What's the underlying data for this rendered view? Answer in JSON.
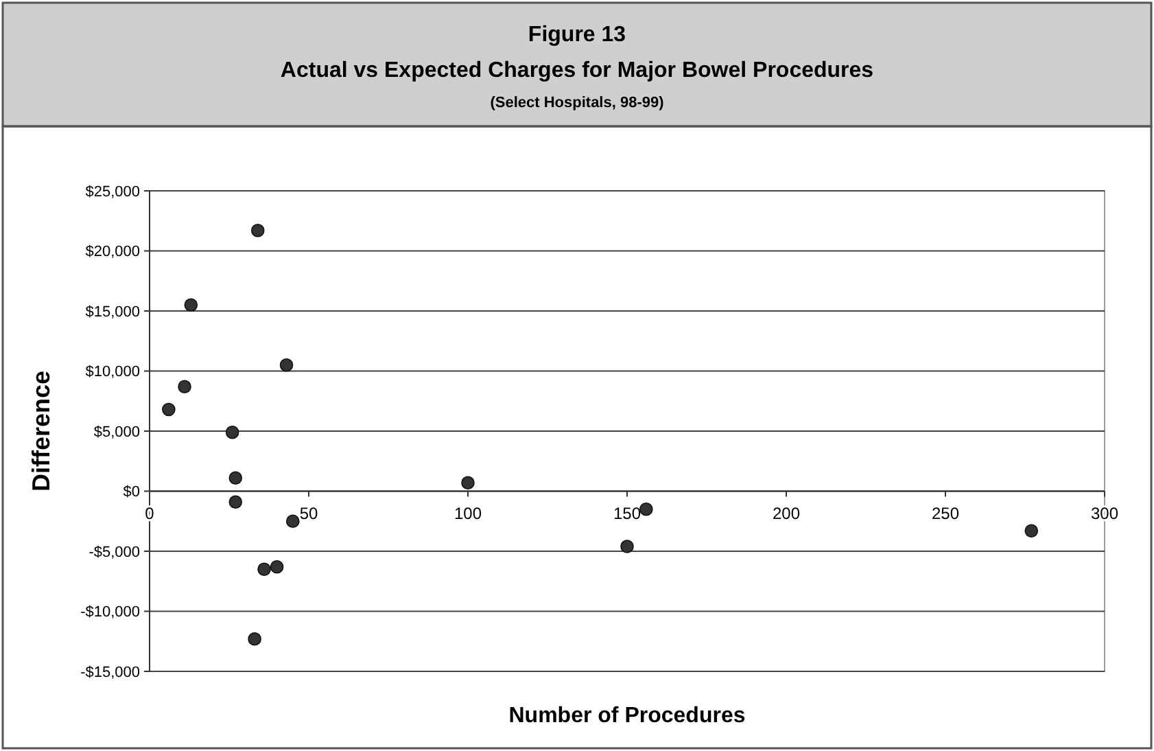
{
  "chart_data": {
    "type": "scatter",
    "title": "Figure 13",
    "subtitle": "Actual vs Expected Charges for Major Bowel Procedures",
    "annotations": [
      "(Select Hospitals, 98-99)"
    ],
    "xlabel": "Number of Procedures",
    "ylabel": "Difference",
    "x": [
      6,
      11,
      13,
      34,
      43,
      26,
      27,
      27,
      45,
      36,
      40,
      33,
      100,
      156,
      150,
      277
    ],
    "series": [
      {
        "color": "#333333",
        "values": [
          6800,
          8700,
          15500,
          21700,
          10500,
          4900,
          1100,
          -900,
          -2500,
          -6500,
          -6300,
          -12300,
          700,
          -1500,
          -4600,
          -3300
        ]
      }
    ],
    "xlim": [
      0,
      300
    ],
    "xticks": [
      0,
      50,
      100,
      150,
      200,
      250,
      300
    ],
    "ylim": [
      -15000,
      25000
    ],
    "yticks": [
      {
        "value": -15000,
        "label": "-$15,000"
      },
      {
        "value": -10000,
        "label": "-$10,000"
      },
      {
        "value": -5000,
        "label": "-$5,000"
      },
      {
        "value": 0,
        "label": "$0"
      },
      {
        "value": 5000,
        "label": "$5,000"
      },
      {
        "value": 10000,
        "label": "$10,000"
      },
      {
        "value": 15000,
        "label": "$15,000"
      },
      {
        "value": 20000,
        "label": "$20,000"
      },
      {
        "value": 25000,
        "label": "$25,000"
      }
    ],
    "grid": "y",
    "marker": "circle"
  }
}
